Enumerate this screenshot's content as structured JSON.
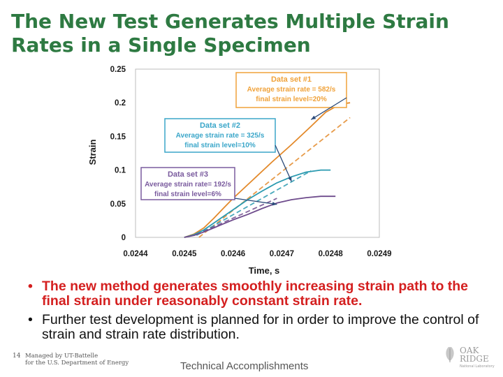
{
  "header": {
    "title_line1": "The New Test Generates Multiple Strain",
    "title_line2": "Rates in a Single Specimen"
  },
  "chart_data": {
    "type": "line",
    "xlabel": "Time, s",
    "ylabel": "Strain",
    "xlim": [
      0.0244,
      0.0249
    ],
    "ylim": [
      0,
      0.25
    ],
    "xticks": [
      "0.0244",
      "0.0245",
      "0.0246",
      "0.0247",
      "0.0248",
      "0.0249"
    ],
    "yticks": [
      "0",
      "0.05",
      "0.1",
      "0.15",
      "0.2",
      "0.25"
    ],
    "series": [
      {
        "name": "Data set #1",
        "color": "#e3892a",
        "x": [
          0.0245,
          0.02452,
          0.02454,
          0.02456,
          0.02458,
          0.0246,
          0.02464,
          0.02468,
          0.02472,
          0.02476,
          0.02479,
          0.02482,
          0.02484
        ],
        "y": [
          0.0,
          0.005,
          0.014,
          0.028,
          0.043,
          0.058,
          0.085,
          0.112,
          0.138,
          0.165,
          0.186,
          0.198,
          0.2
        ],
        "fit_x": [
          0.02453,
          0.02484
        ],
        "fit_y": [
          0.0,
          0.178
        ]
      },
      {
        "name": "Data set #2",
        "color": "#2a9ab0",
        "x": [
          0.0245,
          0.02452,
          0.02454,
          0.02456,
          0.02458,
          0.0246,
          0.02463,
          0.02466,
          0.02469,
          0.02472,
          0.02475,
          0.02478,
          0.0248
        ],
        "y": [
          0.0,
          0.004,
          0.011,
          0.021,
          0.031,
          0.041,
          0.056,
          0.069,
          0.081,
          0.09,
          0.097,
          0.1,
          0.1
        ],
        "fit_x": [
          0.024525,
          0.02476
        ],
        "fit_y": [
          0.003,
          0.099
        ]
      },
      {
        "name": "Data set #3",
        "color": "#6e4b8c",
        "x": [
          0.0245,
          0.02452,
          0.02454,
          0.02456,
          0.02458,
          0.0246,
          0.02463,
          0.02466,
          0.02469,
          0.02472,
          0.02475,
          0.02478,
          0.02481
        ],
        "y": [
          0.0,
          0.003,
          0.008,
          0.014,
          0.02,
          0.026,
          0.034,
          0.043,
          0.051,
          0.056,
          0.059,
          0.061,
          0.061
        ],
        "fit_x": [
          0.024525,
          0.02469
        ],
        "fit_y": [
          0.004,
          0.058
        ]
      }
    ],
    "annotations": [
      {
        "series": "Data set #1",
        "lines": [
          "Data set #1",
          "Average strain rate = 582/s",
          "final strain level=20%"
        ],
        "color": "#f0a23a",
        "target": [
          0.02476,
          0.175
        ]
      },
      {
        "series": "Data set #2",
        "lines": [
          "Data set #2",
          "Average strain rate = 325/s",
          "final strain level=10%"
        ],
        "color": "#3aa6c9",
        "target": [
          0.02472,
          0.083
        ]
      },
      {
        "series": "Data set #3",
        "lines": [
          "Data set #3",
          "Average strain rate= 192/s",
          "final strain level=6%"
        ],
        "color": "#7a5b9e",
        "target": [
          0.02469,
          0.049
        ]
      }
    ]
  },
  "bullets": [
    "The new method generates smoothly increasing strain path to the final strain under reasonably constant strain rate.",
    "Further test development is planned for in order to improve the control of strain and strain rate distribution."
  ],
  "footer": {
    "page_number": "14",
    "managed_line1": "Managed by UT-Battelle",
    "managed_line2": "for the U.S. Department of Energy",
    "center_text": "Technical Accomplishments",
    "logo_line1": "OAK",
    "logo_line2": "RIDGE",
    "logo_line3": "National Laboratory"
  }
}
